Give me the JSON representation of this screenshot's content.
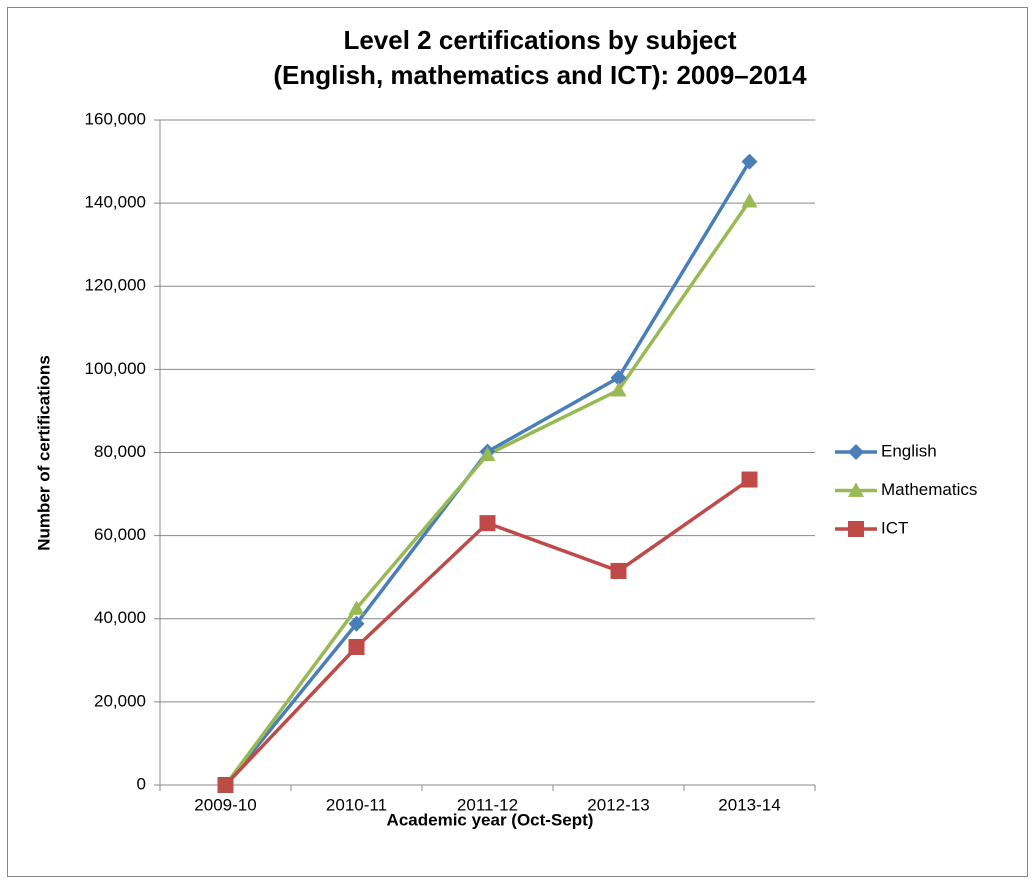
{
  "chart_data": {
    "type": "line",
    "title": [
      "Level 2 certifications by subject",
      "(English, mathematics and ICT): 2009–2014"
    ],
    "x_label": "Academic year (Oct-Sept)",
    "y_label": "Number of certifications",
    "categories": [
      "2009-10",
      "2010-11",
      "2011-12",
      "2012-13",
      "2013-14"
    ],
    "series": [
      {
        "name": "English",
        "color": "#4a7ebb",
        "marker": "diamond",
        "values": [
          0,
          38800,
          80200,
          98000,
          150000
        ]
      },
      {
        "name": "Mathematics",
        "color": "#98b954",
        "marker": "triangle",
        "values": [
          0,
          42500,
          79500,
          95000,
          140500
        ]
      },
      {
        "name": "ICT",
        "color": "#be4b48",
        "marker": "square",
        "values": [
          0,
          33200,
          63000,
          51500,
          73500
        ]
      }
    ],
    "ylim": [
      0,
      160000
    ],
    "yticks": [
      0,
      {
        "value": 20000,
        "label": "20,000"
      },
      {
        "value": 40000,
        "label": "40,000"
      },
      {
        "value": 60000,
        "label": "60,000"
      },
      {
        "value": 80000,
        "label": "80,000"
      },
      {
        "value": 100000,
        "label": "100,000"
      },
      {
        "value": 120000,
        "label": "120,000"
      },
      {
        "value": 140000,
        "label": "140,000"
      },
      {
        "value": 160000,
        "label": "160,000"
      }
    ],
    "grid": true,
    "legend": "right"
  }
}
